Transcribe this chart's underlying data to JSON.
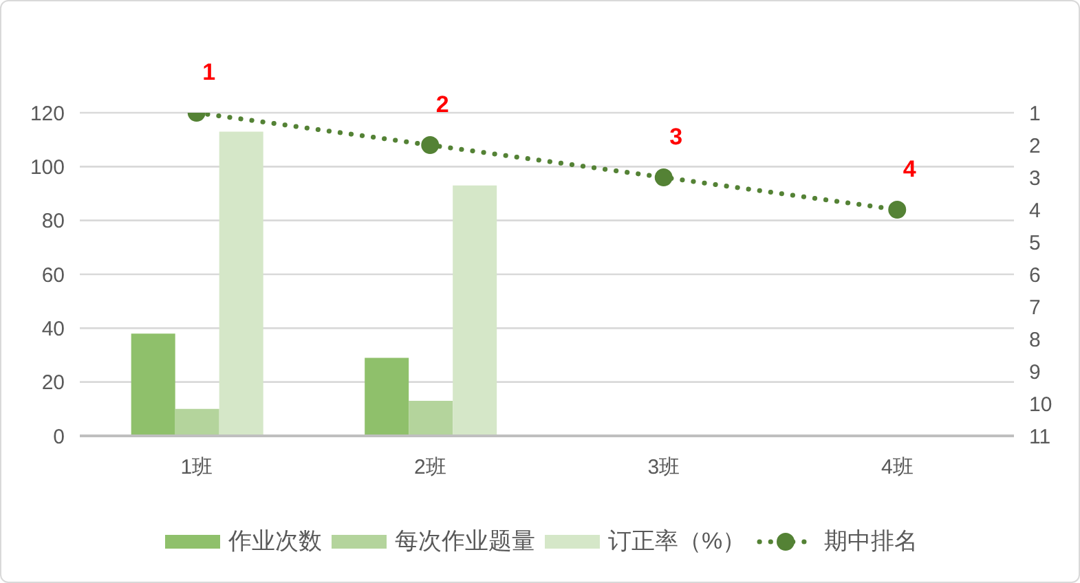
{
  "chart_data": {
    "type": "bar",
    "categories": [
      "1班",
      "2班",
      "3班",
      "4班"
    ],
    "series": [
      {
        "name": "作业次数",
        "type": "bar",
        "color": "#8fc06b",
        "values": [
          38,
          29,
          null,
          null
        ]
      },
      {
        "name": "每次作业题量",
        "type": "bar",
        "color": "#b4d49c",
        "values": [
          10,
          13,
          null,
          null
        ]
      },
      {
        "name": "订正率（%）",
        "type": "bar",
        "color": "#d5e7c8",
        "values": [
          113,
          93,
          null,
          null
        ]
      },
      {
        "name": "期中排名",
        "type": "line",
        "axis": "y2",
        "color": "#548235",
        "values": [
          1,
          2,
          3,
          4
        ],
        "value_labels": [
          "1",
          "2",
          "3",
          "4"
        ]
      }
    ],
    "ylim": [
      0,
      120
    ],
    "yticks": [
      0,
      20,
      40,
      60,
      80,
      100,
      120
    ],
    "y2lim": [
      11,
      1
    ],
    "y2ticks": [
      1,
      2,
      3,
      4,
      5,
      6,
      7,
      8,
      9,
      10,
      11
    ],
    "grid": "y",
    "legend": "bottom",
    "marker": "circle",
    "line_style": "dotted"
  }
}
